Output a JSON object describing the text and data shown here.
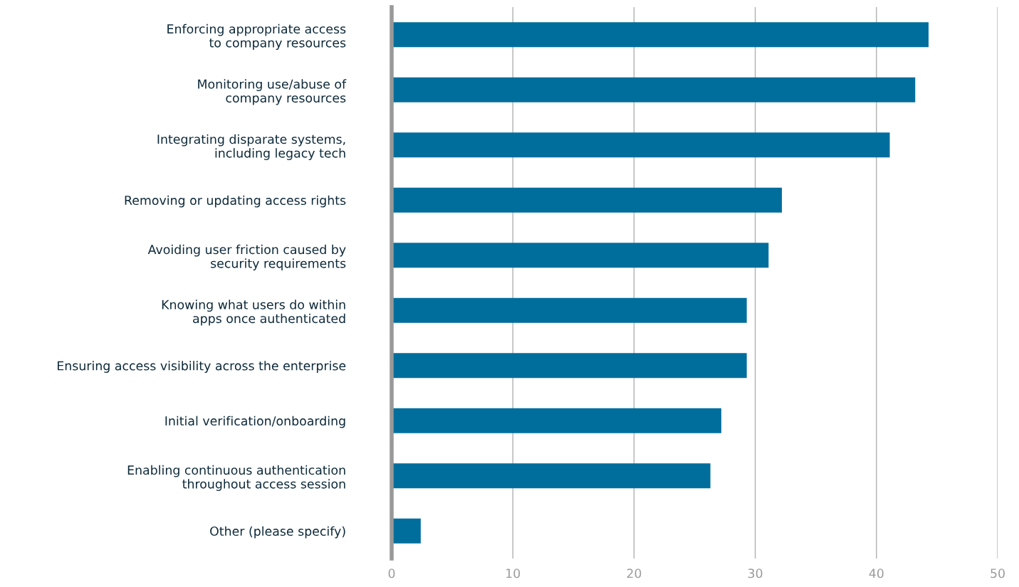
{
  "chart_data": {
    "type": "bar",
    "orientation": "horizontal",
    "categories": [
      "Enforcing appropriate access\nto company resources",
      "Monitoring use/abuse of\ncompany resources",
      "Integrating disparate systems,\nincluding legacy tech",
      "Removing or updating access rights",
      "Avoiding user friction caused by\nsecurity requirements",
      "Knowing what users do within\napps once authenticated",
      "Ensuring access visibility across the enterprise",
      "Initial verification/onboarding",
      "Enabling continuous authentication\nthroughout access session",
      "Other (please specify)"
    ],
    "values": [
      44.3,
      43.2,
      41.1,
      32.2,
      31.1,
      29.3,
      29.3,
      27.2,
      26.3,
      2.4
    ],
    "color": "#006e9c",
    "xlim": [
      0,
      50
    ],
    "xticks": [
      0,
      10,
      20,
      30,
      40,
      50
    ],
    "grid": "x"
  }
}
